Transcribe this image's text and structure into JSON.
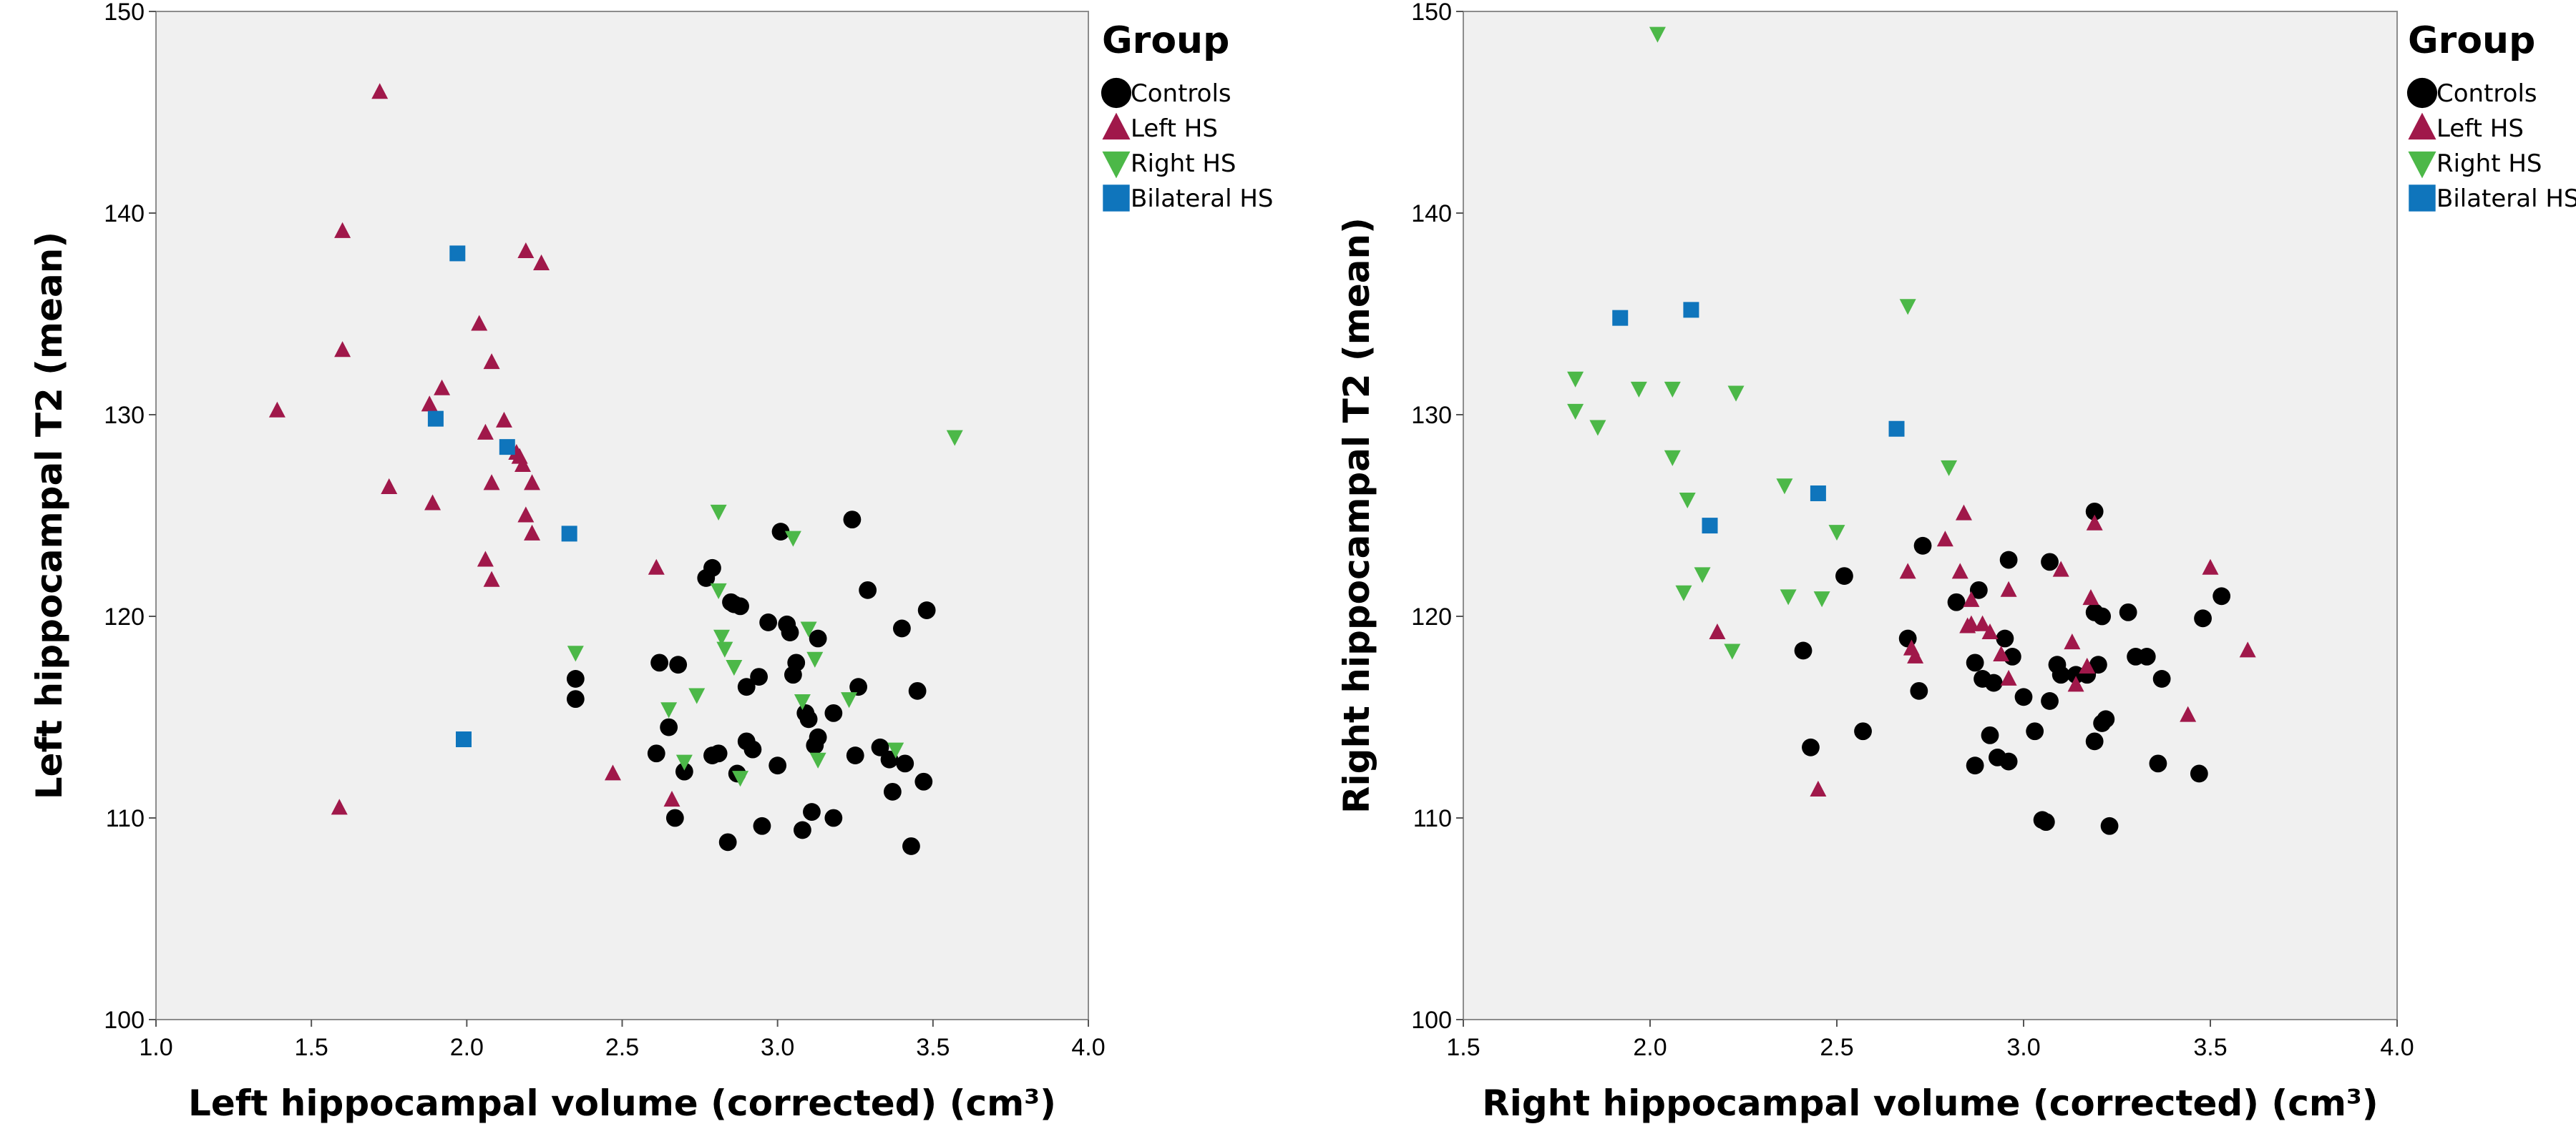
{
  "chart_data": [
    {
      "type": "scatter",
      "xlabel": "Left hippocampal volume (corrected) (cm³)",
      "ylabel": "Left hippocampal T2 (mean)",
      "xlim": [
        1.0,
        4.0
      ],
      "ylim": [
        100,
        150
      ],
      "xticks": [
        "1.0",
        "1.5",
        "2.0",
        "2.5",
        "3.0",
        "3.5",
        "4.0"
      ],
      "yticks": [
        "100",
        "110",
        "120",
        "130",
        "140",
        "150"
      ],
      "grid": false,
      "legend": {
        "title": "Group",
        "position": "right",
        "entries": [
          "Controls",
          "Left HS",
          "Right HS",
          "Bilateral HS"
        ]
      },
      "series": [
        {
          "name": "Controls",
          "marker": "circle",
          "color": "#000000",
          "points": [
            [
              2.35,
              116.9
            ],
            [
              2.35,
              115.9
            ],
            [
              2.61,
              113.2
            ],
            [
              2.62,
              117.7
            ],
            [
              2.65,
              114.5
            ],
            [
              2.67,
              110
            ],
            [
              2.68,
              117.6
            ],
            [
              2.7,
              112.3
            ],
            [
              2.77,
              121.9
            ],
            [
              2.79,
              122.4
            ],
            [
              2.79,
              113.1
            ],
            [
              2.81,
              113.2
            ],
            [
              2.84,
              108.8
            ],
            [
              2.85,
              120.7
            ],
            [
              2.86,
              120.6
            ],
            [
              2.87,
              112.2
            ],
            [
              2.88,
              120.5
            ],
            [
              2.9,
              116.5
            ],
            [
              2.9,
              113.8
            ],
            [
              2.92,
              113.4
            ],
            [
              2.94,
              117.0
            ],
            [
              2.95,
              109.6
            ],
            [
              2.97,
              119.7
            ],
            [
              3.0,
              112.6
            ],
            [
              3.01,
              124.2
            ],
            [
              3.03,
              119.6
            ],
            [
              3.04,
              119.2
            ],
            [
              3.05,
              117.1
            ],
            [
              3.06,
              117.7
            ],
            [
              3.08,
              109.4
            ],
            [
              3.09,
              115.2
            ],
            [
              3.1,
              114.9
            ],
            [
              3.11,
              110.3
            ],
            [
              3.12,
              113.6
            ],
            [
              3.13,
              114.0
            ],
            [
              3.13,
              118.9
            ],
            [
              3.18,
              115.2
            ],
            [
              3.18,
              110.0
            ],
            [
              3.24,
              124.8
            ],
            [
              3.25,
              113.1
            ],
            [
              3.26,
              116.5
            ],
            [
              3.29,
              121.3
            ],
            [
              3.33,
              113.5
            ],
            [
              3.36,
              112.9
            ],
            [
              3.37,
              111.3
            ],
            [
              3.4,
              119.4
            ],
            [
              3.41,
              112.7
            ],
            [
              3.43,
              108.6
            ],
            [
              3.45,
              116.3
            ],
            [
              3.47,
              111.8
            ],
            [
              3.48,
              120.3
            ]
          ]
        },
        {
          "name": "Left HS",
          "marker": "triangle-up",
          "color": "#a0184a",
          "points": [
            [
              1.39,
              130.2
            ],
            [
              1.59,
              110.5
            ],
            [
              1.6,
              139.1
            ],
            [
              1.6,
              133.2
            ],
            [
              1.72,
              146.0
            ],
            [
              1.75,
              126.4
            ],
            [
              1.88,
              130.5
            ],
            [
              1.89,
              125.6
            ],
            [
              1.92,
              131.3
            ],
            [
              2.04,
              134.5
            ],
            [
              2.06,
              129.1
            ],
            [
              2.06,
              122.8
            ],
            [
              2.08,
              121.8
            ],
            [
              2.08,
              126.6
            ],
            [
              2.08,
              132.6
            ],
            [
              2.12,
              129.7
            ],
            [
              2.16,
              128.1
            ],
            [
              2.17,
              127.9
            ],
            [
              2.18,
              127.5
            ],
            [
              2.19,
              125.0
            ],
            [
              2.19,
              138.1
            ],
            [
              2.21,
              126.6
            ],
            [
              2.21,
              124.1
            ],
            [
              2.24,
              137.5
            ],
            [
              2.47,
              112.2
            ],
            [
              2.61,
              122.4
            ],
            [
              2.66,
              110.9
            ]
          ]
        },
        {
          "name": "Right HS",
          "marker": "triangle-down",
          "color": "#4cb848",
          "points": [
            [
              2.35,
              118.2
            ],
            [
              2.65,
              115.4
            ],
            [
              2.7,
              112.8
            ],
            [
              2.74,
              116.1
            ],
            [
              2.81,
              121.3
            ],
            [
              2.81,
              125.2
            ],
            [
              2.82,
              119.0
            ],
            [
              2.83,
              118.4
            ],
            [
              2.86,
              117.5
            ],
            [
              2.88,
              112.0
            ],
            [
              3.05,
              123.9
            ],
            [
              3.08,
              115.8
            ],
            [
              3.1,
              119.4
            ],
            [
              3.12,
              117.9
            ],
            [
              3.13,
              112.9
            ],
            [
              3.23,
              115.9
            ],
            [
              3.38,
              113.4
            ],
            [
              3.57,
              128.9
            ]
          ]
        },
        {
          "name": "Bilateral HS",
          "marker": "square",
          "color": "#0f75bc",
          "points": [
            [
              1.9,
              129.8
            ],
            [
              1.97,
              138.0
            ],
            [
              1.99,
              113.9
            ],
            [
              2.13,
              128.4
            ],
            [
              2.33,
              124.1
            ]
          ]
        }
      ]
    },
    {
      "type": "scatter",
      "xlabel": "Right hippocampal volume (corrected) (cm³)",
      "ylabel": "Right hippocampal T2 (mean)",
      "xlim": [
        1.5,
        4.0
      ],
      "ylim": [
        100,
        150
      ],
      "xticks": [
        "1.5",
        "2.0",
        "2.5",
        "3.0",
        "3.5",
        "4.0"
      ],
      "yticks": [
        "100",
        "110",
        "120",
        "130",
        "140",
        "150"
      ],
      "grid": false,
      "legend": {
        "title": "Group",
        "position": "right",
        "entries": [
          "Controls",
          "Left HS",
          "Right HS",
          "Bilateral HS"
        ]
      },
      "series": [
        {
          "name": "Controls",
          "marker": "circle",
          "color": "#000000",
          "points": [
            [
              2.41,
              118.3
            ],
            [
              2.43,
              113.5
            ],
            [
              2.52,
              122.0
            ],
            [
              2.57,
              114.3
            ],
            [
              2.69,
              118.9
            ],
            [
              2.72,
              116.3
            ],
            [
              2.73,
              123.5
            ],
            [
              2.82,
              120.7
            ],
            [
              2.87,
              112.6
            ],
            [
              2.87,
              117.7
            ],
            [
              2.88,
              121.3
            ],
            [
              2.89,
              116.9
            ],
            [
              2.91,
              114.1
            ],
            [
              2.92,
              116.7
            ],
            [
              2.93,
              113.0
            ],
            [
              2.95,
              118.9
            ],
            [
              2.96,
              122.8
            ],
            [
              2.96,
              112.8
            ],
            [
              2.97,
              118.0
            ],
            [
              3.0,
              116.0
            ],
            [
              3.03,
              114.3
            ],
            [
              3.05,
              109.9
            ],
            [
              3.06,
              109.8
            ],
            [
              3.07,
              115.8
            ],
            [
              3.07,
              122.7
            ],
            [
              3.09,
              117.6
            ],
            [
              3.1,
              117.1
            ],
            [
              3.14,
              117.1
            ],
            [
              3.17,
              117.1
            ],
            [
              3.19,
              120.2
            ],
            [
              3.19,
              125.2
            ],
            [
              3.19,
              113.8
            ],
            [
              3.2,
              117.6
            ],
            [
              3.21,
              120.0
            ],
            [
              3.21,
              114.7
            ],
            [
              3.22,
              114.9
            ],
            [
              3.23,
              109.6
            ],
            [
              3.28,
              120.2
            ],
            [
              3.3,
              118.0
            ],
            [
              3.33,
              118.0
            ],
            [
              3.36,
              112.7
            ],
            [
              3.37,
              116.9
            ],
            [
              3.47,
              112.2
            ],
            [
              3.48,
              119.9
            ],
            [
              3.53,
              121.0
            ]
          ]
        },
        {
          "name": "Left HS",
          "marker": "triangle-up",
          "color": "#a0184a",
          "points": [
            [
              2.18,
              119.2
            ],
            [
              2.45,
              111.4
            ],
            [
              2.69,
              122.2
            ],
            [
              2.7,
              118.4
            ],
            [
              2.71,
              118.0
            ],
            [
              2.79,
              123.8
            ],
            [
              2.83,
              122.2
            ],
            [
              2.84,
              125.1
            ],
            [
              2.85,
              119.5
            ],
            [
              2.86,
              119.6
            ],
            [
              2.86,
              120.8
            ],
            [
              2.89,
              119.6
            ],
            [
              2.91,
              119.2
            ],
            [
              2.94,
              118.1
            ],
            [
              2.96,
              121.3
            ],
            [
              2.96,
              116.9
            ],
            [
              3.1,
              122.3
            ],
            [
              3.13,
              118.7
            ],
            [
              3.14,
              116.6
            ],
            [
              3.17,
              117.5
            ],
            [
              3.18,
              120.9
            ],
            [
              3.19,
              124.6
            ],
            [
              3.44,
              115.1
            ],
            [
              3.5,
              122.4
            ],
            [
              3.6,
              118.3
            ]
          ]
        },
        {
          "name": "Right HS",
          "marker": "triangle-down",
          "color": "#4cb848",
          "points": [
            [
              1.8,
              131.8
            ],
            [
              1.8,
              130.2
            ],
            [
              1.86,
              129.4
            ],
            [
              1.97,
              131.3
            ],
            [
              2.02,
              148.9
            ],
            [
              2.06,
              131.3
            ],
            [
              2.06,
              127.9
            ],
            [
              2.09,
              121.2
            ],
            [
              2.1,
              125.8
            ],
            [
              2.14,
              122.1
            ],
            [
              2.22,
              118.3
            ],
            [
              2.23,
              131.1
            ],
            [
              2.36,
              126.5
            ],
            [
              2.37,
              121.0
            ],
            [
              2.46,
              120.9
            ],
            [
              2.5,
              124.2
            ],
            [
              2.69,
              135.4
            ],
            [
              2.8,
              127.4
            ]
          ]
        },
        {
          "name": "Bilateral HS",
          "marker": "square",
          "color": "#0f75bc",
          "points": [
            [
              1.92,
              134.8
            ],
            [
              2.11,
              135.2
            ],
            [
              2.16,
              124.5
            ],
            [
              2.45,
              126.1
            ],
            [
              2.66,
              129.3
            ]
          ]
        }
      ]
    }
  ]
}
